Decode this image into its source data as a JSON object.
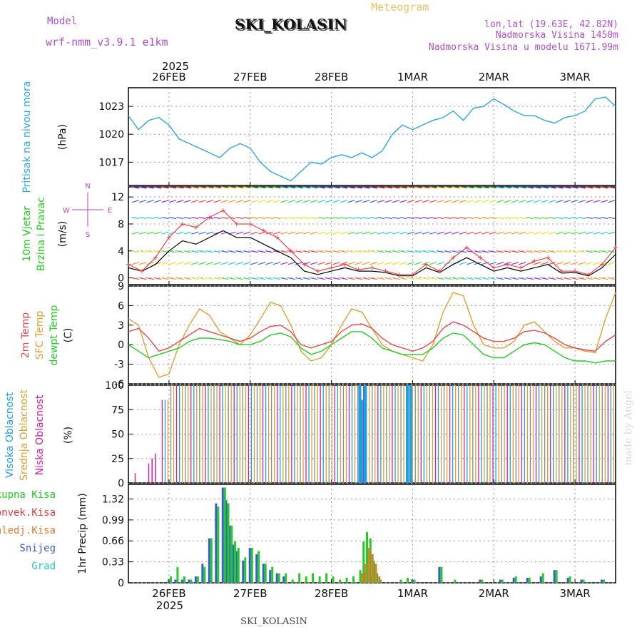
{
  "header": {
    "model_label": "Model",
    "model_name": "wrf-nmm_v3.9.1 e1km",
    "meteogram_label": "Meteogram",
    "station": "SKI_KOLASIN",
    "lonlat": "lon,lat (19.63E, 42.82N)",
    "elevation": "Nadmorska Visina 1450m",
    "model_elevation": "Nadmorska Visina u modelu 1671.99m",
    "footer_station": "SKI_KOLASIN",
    "watermark": "made by Angel",
    "year_label": "2025"
  },
  "time_axis": {
    "tick_labels": [
      "26FEB",
      "27FEB",
      "28FEB",
      "1MAR",
      "2MAR",
      "3MAR"
    ],
    "tick_hours": [
      12,
      36,
      60,
      84,
      108,
      132
    ],
    "hour_range": [
      0,
      144
    ]
  },
  "colors": {
    "pressure": "#2aa8e0",
    "temp2m": "#e84a4a",
    "sfc": "#e0a030",
    "dewpt": "#22cc22",
    "high_cloud": "#1e9ee0",
    "mid_cloud": "#d8a030",
    "low_cloud": "#d020a0",
    "total_precip": "#22cc22",
    "conv_precip": "#e83a3a",
    "frz_precip": "#e87a30",
    "snow": "#3a5ad8",
    "hail": "#20c8c8",
    "speed_obs": "#e84a4a",
    "speed_model": "#000000",
    "compass": "#c040c0"
  },
  "chart_data": [
    {
      "type": "line",
      "panel": "pressure",
      "ylabel_left": "Pritisak na nivou mora",
      "ylabel_unit": "(hPa)",
      "ytick_labels": [
        "1017",
        "1020",
        "1023"
      ],
      "ylim": [
        1014.5,
        1025
      ],
      "grid": true,
      "series": [
        {
          "x": [
            0,
            3,
            6,
            9,
            12,
            15,
            18,
            21,
            24,
            27,
            30,
            33,
            36,
            39,
            42,
            45,
            48,
            51,
            54,
            57,
            60,
            63,
            66,
            69,
            72,
            75,
            78,
            81,
            84,
            87,
            90,
            93,
            96,
            99,
            102,
            105,
            108,
            111,
            114,
            117,
            120,
            123,
            126,
            129,
            132,
            135,
            138,
            141,
            144
          ],
          "values": [
            1022,
            1020.5,
            1021.5,
            1021.8,
            1021,
            1019.5,
            1019,
            1018.5,
            1018,
            1017.5,
            1018.5,
            1019,
            1018.5,
            1017,
            1016,
            1015.5,
            1015,
            1016,
            1017,
            1016.8,
            1017.5,
            1017.8,
            1017.5,
            1018,
            1017.5,
            1018.2,
            1020,
            1021,
            1020.5,
            1021,
            1021.5,
            1021.8,
            1022.5,
            1021.5,
            1022.8,
            1023,
            1023.8,
            1023.2,
            1022.5,
            1022,
            1022,
            1021.5,
            1021.2,
            1021.8,
            1022,
            1022.5,
            1023.8,
            1024,
            1023
          ]
        }
      ]
    },
    {
      "type": "line",
      "panel": "wind",
      "ylabel_left": "10m Vjetar",
      "ylabel_left2": "Brzina i Pravac",
      "ylabel_unit": "(m/s)",
      "compass": {
        "n": "N",
        "s": "S",
        "w": "W",
        "e": "E"
      },
      "ytick_labels": [
        "0",
        "4",
        "8",
        "12"
      ],
      "ylim": [
        -1,
        13.5
      ],
      "grid": true,
      "barb_rows": [
        0,
        2,
        4,
        6.5,
        9,
        11.2,
        13.5
      ],
      "series": [
        {
          "x": [
            0,
            4,
            8,
            12,
            16,
            20,
            24,
            28,
            32,
            36,
            40,
            44,
            48,
            52,
            56,
            60,
            64,
            68,
            72,
            76,
            80,
            84,
            88,
            92,
            96,
            100,
            104,
            108,
            112,
            116,
            120,
            124,
            128,
            132,
            136,
            140,
            144
          ],
          "values": [
            2,
            1,
            3,
            6,
            8,
            7.5,
            9,
            10,
            8,
            8,
            7,
            6,
            4,
            2,
            1,
            1.5,
            2,
            1.2,
            1.5,
            1,
            0.5,
            0.5,
            2,
            1,
            3,
            4.5,
            3,
            1.5,
            2,
            1.5,
            2.5,
            3,
            1,
            1,
            0.5,
            2,
            4.5
          ]
        },
        {
          "x": [
            0,
            4,
            8,
            12,
            16,
            20,
            24,
            28,
            32,
            36,
            40,
            44,
            48,
            52,
            56,
            60,
            64,
            68,
            72,
            76,
            80,
            84,
            88,
            92,
            96,
            100,
            104,
            108,
            112,
            116,
            120,
            124,
            128,
            132,
            136,
            140,
            144
          ],
          "values": [
            1.5,
            1,
            2,
            4,
            5.5,
            5,
            6,
            7,
            6,
            6,
            5,
            4,
            3,
            1,
            0.5,
            1,
            1.5,
            1,
            1,
            0.8,
            0.3,
            0.3,
            1.5,
            0.8,
            2,
            3,
            2,
            1,
            1.5,
            1,
            1.5,
            2,
            0.7,
            0.8,
            0.3,
            1.5,
            3.5
          ]
        }
      ]
    },
    {
      "type": "line",
      "panel": "temperature",
      "ylabel_left": "2m Temp",
      "ylabel_left2": "SFC Temp",
      "ylabel_left3": "dewpt Temp",
      "ylabel_unit": "(C)",
      "ytick_labels": [
        "-6",
        "-3",
        "0",
        "3",
        "6",
        "9"
      ],
      "ylim": [
        -6,
        9
      ],
      "grid": true,
      "series": [
        {
          "name": "2m Temp",
          "x": [
            0,
            3,
            6,
            9,
            12,
            15,
            18,
            21,
            24,
            27,
            30,
            33,
            36,
            39,
            42,
            45,
            48,
            51,
            54,
            57,
            60,
            63,
            66,
            69,
            72,
            75,
            78,
            81,
            84,
            87,
            90,
            93,
            96,
            99,
            102,
            105,
            108,
            111,
            114,
            117,
            120,
            123,
            126,
            129,
            132,
            135,
            138,
            141,
            144
          ],
          "values": [
            2,
            2.5,
            1,
            -1,
            -0.5,
            0.5,
            1.5,
            2.5,
            2,
            1.5,
            1,
            0.5,
            1,
            2,
            2.8,
            3,
            2,
            0,
            -0.5,
            0,
            0.5,
            2,
            3,
            3.2,
            2.5,
            1,
            0,
            -0.5,
            -1,
            -0.5,
            0.5,
            2.5,
            3.5,
            3,
            2,
            1,
            0.5,
            0.5,
            1,
            2,
            2.2,
            1.8,
            1,
            0,
            -0.5,
            -0.8,
            -1,
            0.5,
            1.5
          ]
        },
        {
          "name": "SFC Temp",
          "x": [
            0,
            3,
            6,
            9,
            12,
            15,
            18,
            21,
            24,
            27,
            30,
            33,
            36,
            39,
            42,
            45,
            48,
            51,
            54,
            57,
            60,
            63,
            66,
            69,
            72,
            75,
            78,
            81,
            84,
            87,
            90,
            93,
            96,
            99,
            102,
            105,
            108,
            111,
            114,
            117,
            120,
            123,
            126,
            129,
            132,
            135,
            138,
            141,
            144
          ],
          "values": [
            4,
            3,
            -2,
            -5,
            -4.5,
            0,
            3,
            5.5,
            4.5,
            2,
            1,
            0,
            1.5,
            4,
            6.5,
            6,
            3,
            -1,
            -2.5,
            -2,
            0,
            3,
            5.5,
            5,
            2.5,
            0,
            -1,
            -1.5,
            -2,
            -2.5,
            0,
            5,
            8,
            7.5,
            3,
            0,
            -0.5,
            -0.5,
            0.5,
            3,
            3.5,
            2,
            0.5,
            -0.5,
            -0.5,
            -1,
            -1.2,
            4,
            8
          ]
        },
        {
          "name": "dewpt Temp",
          "x": [
            0,
            3,
            6,
            9,
            12,
            15,
            18,
            21,
            24,
            27,
            30,
            33,
            36,
            39,
            42,
            45,
            48,
            51,
            54,
            57,
            60,
            63,
            66,
            69,
            72,
            75,
            78,
            81,
            84,
            87,
            90,
            93,
            96,
            99,
            102,
            105,
            108,
            111,
            114,
            117,
            120,
            123,
            126,
            129,
            132,
            135,
            138,
            141,
            144
          ],
          "values": [
            0,
            -1,
            -2,
            -1.5,
            -1,
            -0.5,
            0.5,
            1,
            1,
            0.8,
            0.5,
            0,
            0,
            0.5,
            1.5,
            1.8,
            1.2,
            -0.5,
            -1.5,
            -1,
            0,
            1,
            2,
            2,
            1,
            -0.5,
            -1,
            -1.5,
            -1.5,
            -1.5,
            -0.5,
            1,
            1.8,
            1.5,
            0,
            -1.5,
            -2,
            -2,
            -1,
            0,
            0.3,
            0,
            -1,
            -2,
            -2.5,
            -2.5,
            -2.8,
            -2.5,
            -2.5
          ]
        }
      ]
    },
    {
      "type": "bar",
      "panel": "clouds",
      "ylabel_left": "Visoka Oblacnost",
      "ylabel_left2": "Srednja Oblacnost",
      "ylabel_left3": "Niska Oblacnost",
      "ylabel_unit": "(%)",
      "ytick_labels": [
        "0",
        "25",
        "50",
        "75",
        "100"
      ],
      "ylim": [
        0,
        100
      ],
      "grid": true,
      "note": "Hourly cloud cover; mostly 100% from ~day 1 onward for mid and low levels, high cloud intermittent"
    },
    {
      "type": "bar",
      "panel": "precip",
      "legend": [
        "Ukupna Kisa",
        "Konvek.Kisa",
        "Zaledj.Kisa",
        "Snijeg",
        "Grad"
      ],
      "ylabel": "1hr Precip (mm)",
      "ytick_labels": [
        "0",
        "0.33",
        "0.66",
        "0.99",
        "1.32"
      ],
      "ylim": [
        0,
        1.55
      ],
      "grid": true,
      "series": [
        {
          "name": "Snijeg",
          "x": [
            12,
            14,
            16,
            18,
            20,
            22,
            24,
            26,
            28,
            29,
            30,
            31,
            32,
            34,
            36,
            38,
            40,
            42,
            44,
            46,
            70,
            72,
            84,
            92,
            104,
            110,
            114,
            118,
            122,
            126,
            130,
            134,
            140
          ],
          "values": [
            0.05,
            0.05,
            0.05,
            0.05,
            0.1,
            0.3,
            0.7,
            1.25,
            1.5,
            1.3,
            0.9,
            0.6,
            0.5,
            0.35,
            0.55,
            0.45,
            0.3,
            0.2,
            0.15,
            0.1,
            0.15,
            0.1,
            0.05,
            0.25,
            0.05,
            0.05,
            0.08,
            0.08,
            0.1,
            0.2,
            0.08,
            0.05,
            0.05
          ]
        },
        {
          "name": "Ukupna Kisa",
          "x": [
            12,
            14,
            16,
            18,
            20,
            22,
            24,
            26,
            28,
            29,
            30,
            31,
            32,
            34,
            36,
            38,
            40,
            42,
            44,
            46,
            48,
            50,
            52,
            54,
            56,
            58,
            60,
            62,
            64,
            66,
            68,
            69,
            70,
            71,
            72,
            73,
            74,
            80,
            82,
            84,
            92,
            96,
            104,
            110,
            114,
            118,
            122,
            126,
            130,
            134,
            140
          ],
          "values": [
            0.1,
            0.25,
            0.1,
            0.05,
            0.1,
            0.25,
            0.7,
            1.2,
            1.5,
            1.25,
            0.9,
            0.65,
            0.55,
            0.4,
            0.55,
            0.5,
            0.3,
            0.25,
            0.15,
            0.15,
            0.05,
            0.15,
            0.1,
            0.15,
            0.1,
            0.15,
            0.1,
            0.05,
            0.08,
            0.1,
            0.2,
            0.65,
            0.8,
            0.7,
            0.35,
            0.15,
            0.05,
            0.05,
            0.08,
            0.05,
            0.25,
            0.05,
            0.05,
            0.05,
            0.1,
            0.08,
            0.15,
            0.2,
            0.1,
            0.05,
            0.05
          ]
        },
        {
          "name": "Zaledj.Kisa",
          "x": [
            68,
            69,
            70,
            71,
            72,
            73
          ],
          "values": [
            0.15,
            0.3,
            0.55,
            0.45,
            0.3,
            0.1
          ]
        }
      ]
    }
  ]
}
